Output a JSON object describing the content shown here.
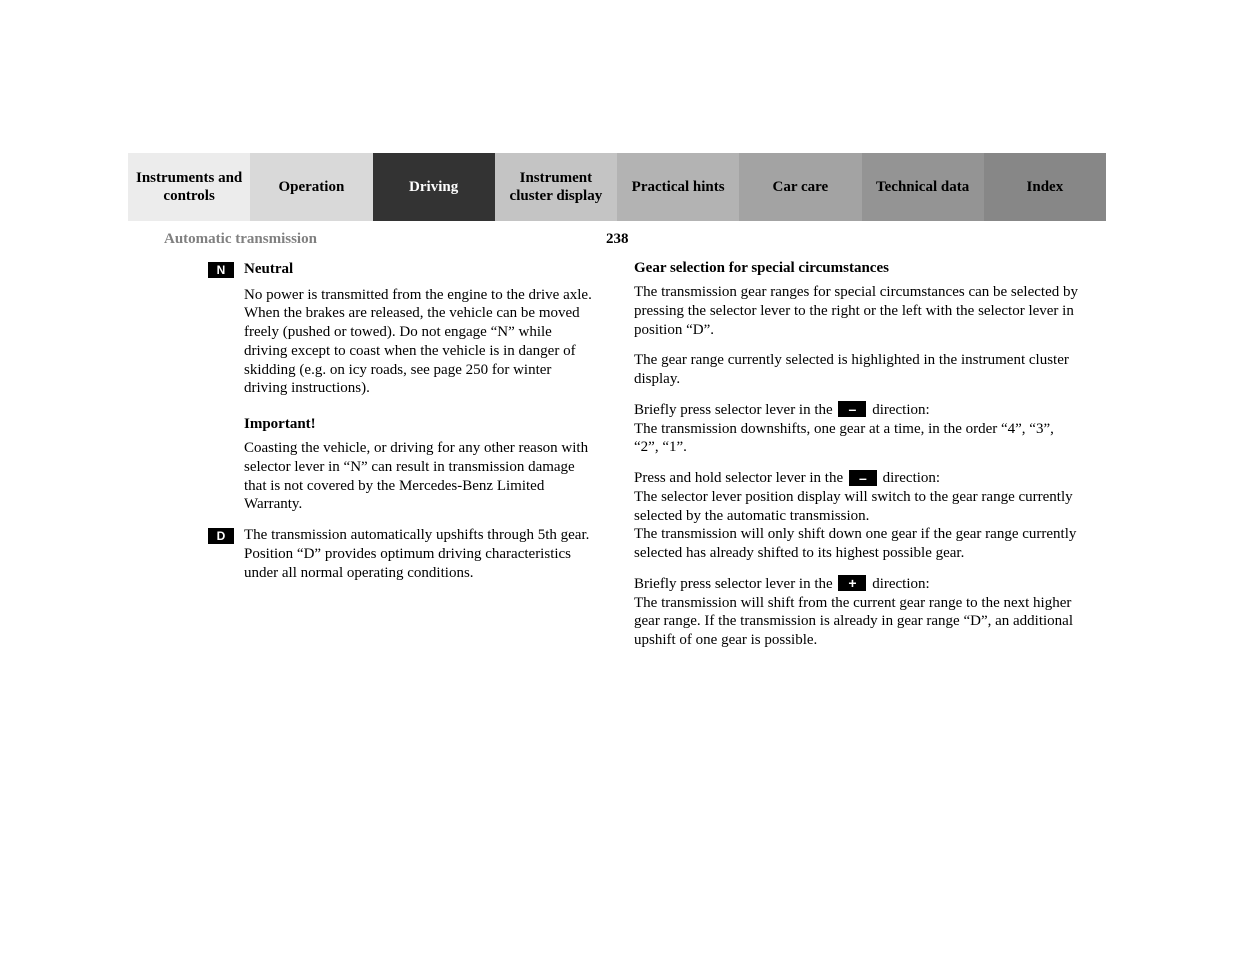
{
  "tabs": [
    {
      "label": "Instruments and controls",
      "bg": "#ececec",
      "fg": "#000000"
    },
    {
      "label": "Operation",
      "bg": "#d9d9d9",
      "fg": "#000000"
    },
    {
      "label": "Driving",
      "bg": "#333333",
      "fg": "#ffffff"
    },
    {
      "label": "Instrument cluster display",
      "bg": "#c4c4c4",
      "fg": "#000000"
    },
    {
      "label": "Practical hints",
      "bg": "#b3b3b3",
      "fg": "#000000"
    },
    {
      "label": "Car care",
      "bg": "#a3a3a3",
      "fg": "#000000"
    },
    {
      "label": "Technical data",
      "bg": "#949494",
      "fg": "#000000"
    },
    {
      "label": "Index",
      "bg": "#878787",
      "fg": "#000000"
    }
  ],
  "header": {
    "section": "Automatic transmission",
    "page": "238"
  },
  "left": {
    "n_badge": "N",
    "n_title": "Neutral",
    "n_para": "No power is transmitted from the engine to the drive axle. When the brakes are released, the vehicle can be moved freely (pushed or towed). Do not engage “N” while driving except to coast when the vehicle is in danger of skidding (e.g. on icy roads, see page 250 for winter driving instructions).",
    "important_head": "Important!",
    "important_para": "Coasting the vehicle, or driving for any other reason with selector lever in “N” can result in transmission damage that is not covered by the Mercedes-Benz Limited Warranty.",
    "d_badge": "D",
    "d_para": "The transmission automatically upshifts through 5th gear. Position “D” provides optimum driving characteristics under all normal operating conditions."
  },
  "right": {
    "head": "Gear selection for special circumstances",
    "p1": "The transmission gear ranges for special circumstances can be selected by pressing the selector lever to the right or the left with the selector lever in position “D”.",
    "p2": "The gear range currently selected is highlighted in the instrument cluster display.",
    "p3a": "Briefly press selector lever in the ",
    "minus1": "–",
    "p3b": " direction:",
    "p3c": "The transmission downshifts, one gear at a time, in the order “4”, “3”, “2”, “1”.",
    "p4a": "Press and hold selector lever in the ",
    "minus2": "–",
    "p4b": " direction:",
    "p4c": "The selector lever position display will switch to the gear range currently selected by the automatic transmission.",
    "p4d": "The transmission will only shift down one gear if the gear range currently selected has already shifted to its highest possible gear.",
    "p5a": "Briefly press selector lever in the ",
    "plus": "+",
    "p5b": " direction:",
    "p5c": "The transmission will shift from the current gear range to the next higher gear range. If the transmission is already in gear range “D”, an additional upshift of one gear is possible."
  }
}
